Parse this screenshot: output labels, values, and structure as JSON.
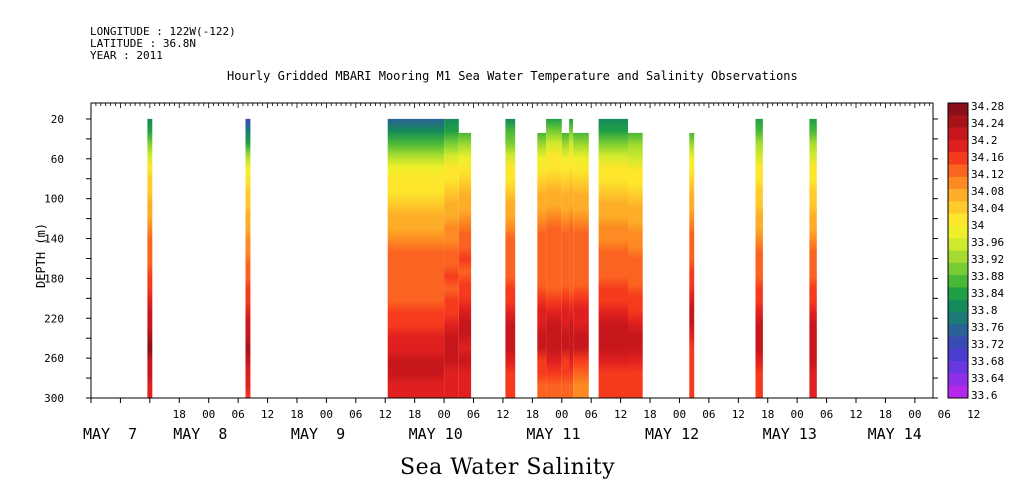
{
  "header": {
    "longitude": "LONGITUDE : 122W(-122)",
    "latitude": "LATITUDE : 36.8N",
    "year": "YEAR : 2011"
  },
  "chart_data": {
    "type": "heatmap",
    "title": "Hourly Gridded MBARI Mooring M1 Sea Water Temperature and Salinity Observations",
    "bottom_title": "Sea Water Salinity",
    "ylabel": "DEPTH (m)",
    "y_inverted": true,
    "ylim": [
      300,
      4
    ],
    "y_ticks": [
      "20",
      "60",
      "100",
      "140",
      "180",
      "220",
      "260",
      "300"
    ],
    "x_hour_labels": [
      {
        "h": 18,
        "label": "18"
      },
      {
        "h": 24,
        "label": "00"
      },
      {
        "h": 30,
        "label": "06"
      },
      {
        "h": 36,
        "label": "12"
      },
      {
        "h": 42,
        "label": "18"
      },
      {
        "h": 48,
        "label": "00"
      },
      {
        "h": 54,
        "label": "06"
      },
      {
        "h": 60,
        "label": "12"
      },
      {
        "h": 66,
        "label": "18"
      },
      {
        "h": 72,
        "label": "00"
      },
      {
        "h": 78,
        "label": "06"
      },
      {
        "h": 84,
        "label": "12"
      },
      {
        "h": 90,
        "label": "18"
      },
      {
        "h": 96,
        "label": "00"
      },
      {
        "h": 102,
        "label": "06"
      },
      {
        "h": 108,
        "label": "12"
      },
      {
        "h": 114,
        "label": "18"
      },
      {
        "h": 120,
        "label": "00"
      },
      {
        "h": 126,
        "label": "06"
      },
      {
        "h": 132,
        "label": "12"
      },
      {
        "h": 138,
        "label": "18"
      },
      {
        "h": 144,
        "label": "00"
      },
      {
        "h": 150,
        "label": "06"
      },
      {
        "h": 156,
        "label": "12"
      },
      {
        "h": 162,
        "label": "18"
      },
      {
        "h": 168,
        "label": "00"
      },
      {
        "h": 174,
        "label": "06"
      },
      {
        "h": 180,
        "label": "12"
      }
    ],
    "x_day_labels": [
      {
        "h": 0,
        "label": "MAY  7"
      },
      {
        "h": 18.4,
        "label": "MAY  8"
      },
      {
        "h": 42.4,
        "label": "MAY  9"
      },
      {
        "h": 66.4,
        "label": "MAY 10"
      },
      {
        "h": 90.4,
        "label": "MAY 11"
      },
      {
        "h": 114.6,
        "label": "MAY 12"
      },
      {
        "h": 138.6,
        "label": "MAY 13"
      },
      {
        "h": 160,
        "label": "MAY 14"
      }
    ],
    "hour_range": [
      0,
      171.7
    ],
    "colorbar": {
      "ticks": [
        "34.28",
        "34.24",
        "34.2",
        "34.16",
        "34.12",
        "34.08",
        "34.04",
        "34",
        "33.96",
        "33.92",
        "33.88",
        "33.84",
        "33.8",
        "33.76",
        "33.72",
        "33.68",
        "33.64",
        "33.6"
      ],
      "colors": [
        "#8a0f18",
        "#a8131a",
        "#c8171c",
        "#e0201f",
        "#f63a1d",
        "#fb6320",
        "#fd8a22",
        "#fdad27",
        "#fecb2b",
        "#fde62c",
        "#f0f02a",
        "#cfea2d",
        "#a6dc30",
        "#78cc33",
        "#48b838",
        "#1fa046",
        "#158a5a",
        "#1c7a78",
        "#2a6196",
        "#3a4ab4",
        "#4a3dd0",
        "#6a36e0",
        "#8f2fe8",
        "#b428ec"
      ]
    },
    "blocks": [
      {
        "h0": 11.5,
        "h1": 12.5,
        "top": 20,
        "column": [
          33.8,
          33.84,
          33.9,
          33.96,
          34.02,
          34.04,
          34.04,
          34.06,
          34.08,
          34.1,
          34.12,
          34.12,
          34.13,
          34.14,
          34.16,
          34.18,
          34.2,
          34.22,
          34.24,
          34.26,
          34.22,
          34.2,
          34.18,
          34.18
        ]
      },
      {
        "h0": 31.5,
        "h1": 32.5,
        "top": 20,
        "column": [
          33.74,
          33.78,
          33.84,
          33.92,
          33.98,
          34.02,
          34.04,
          34.05,
          34.06,
          34.08,
          34.1,
          34.11,
          34.12,
          34.12,
          34.14,
          34.16,
          34.18,
          34.2,
          34.22,
          34.24,
          34.2,
          34.18,
          34.18,
          34.16
        ]
      },
      {
        "h0": 60.5,
        "h1": 72.0,
        "top": 20,
        "column": [
          33.76,
          33.82,
          33.88,
          33.94,
          33.98,
          34.0,
          34.02,
          34.04,
          34.06,
          34.08,
          34.1,
          34.12,
          34.12,
          34.13,
          34.12,
          34.13,
          34.14,
          34.16,
          34.18,
          34.19,
          34.2,
          34.2,
          34.19,
          34.18
        ]
      },
      {
        "h0": 72.0,
        "h1": 75.0,
        "top": 20,
        "column": [
          33.8,
          33.84,
          33.9,
          33.96,
          34.0,
          34.02,
          34.04,
          34.06,
          34.08,
          34.1,
          34.11,
          34.12,
          34.13,
          34.14,
          34.13,
          34.14,
          34.16,
          34.18,
          34.2,
          34.21,
          34.2,
          34.18,
          34.18,
          34.18
        ]
      },
      {
        "h0": 75.0,
        "h1": 77.5,
        "top": 34,
        "column": [
          33.86,
          33.92,
          33.98,
          34.02,
          34.04,
          34.06,
          34.08,
          34.1,
          34.12,
          34.13,
          34.14,
          34.12,
          34.14,
          34.16,
          34.18,
          34.2,
          34.2,
          34.19,
          34.2,
          34.18,
          34.18,
          34.18
        ]
      },
      {
        "h0": 84.5,
        "h1": 86.5,
        "top": 20,
        "column": [
          33.82,
          33.86,
          33.9,
          33.96,
          34.0,
          34.02,
          34.04,
          34.06,
          34.08,
          34.1,
          34.12,
          34.12,
          34.13,
          34.13,
          34.14,
          34.16,
          34.18,
          34.2,
          34.22,
          34.2,
          34.18,
          34.16,
          34.16,
          34.16
        ]
      },
      {
        "h0": 91.0,
        "h1": 92.8,
        "top": 34,
        "column": [
          33.88,
          33.94,
          33.98,
          34.02,
          34.04,
          34.06,
          34.08,
          34.1,
          34.12,
          34.12,
          34.13,
          34.12,
          34.13,
          34.15,
          34.17,
          34.19,
          34.2,
          34.2,
          34.16,
          34.14,
          34.12,
          34.12
        ]
      },
      {
        "h0": 92.8,
        "h1": 96.0,
        "top": 20,
        "column": [
          33.84,
          33.9,
          33.96,
          34.0,
          34.02,
          34.04,
          34.06,
          34.08,
          34.1,
          34.12,
          34.12,
          34.13,
          34.12,
          34.12,
          34.13,
          34.15,
          34.18,
          34.2,
          34.22,
          34.21,
          34.18,
          34.14,
          34.12,
          34.12
        ]
      },
      {
        "h0": 96.0,
        "h1": 97.5,
        "top": 34,
        "column": [
          33.88,
          33.94,
          33.98,
          34.02,
          34.04,
          34.06,
          34.08,
          34.1,
          34.12,
          34.12,
          34.13,
          34.12,
          34.13,
          34.15,
          34.17,
          34.19,
          34.2,
          34.2,
          34.16,
          34.14,
          34.12,
          34.12
        ]
      },
      {
        "h0": 97.5,
        "h1": 98.3,
        "top": 20,
        "column": [
          33.84,
          33.9,
          33.96,
          34.0,
          34.02,
          34.04,
          34.06,
          34.08,
          34.1,
          34.12,
          34.12,
          34.13,
          34.12,
          34.12,
          34.13,
          34.15,
          34.18,
          34.2,
          34.22,
          34.21,
          34.18,
          34.14,
          34.12,
          34.12
        ]
      },
      {
        "h0": 98.3,
        "h1": 101.5,
        "top": 34,
        "column": [
          33.88,
          33.94,
          33.98,
          34.02,
          34.04,
          34.06,
          34.08,
          34.1,
          34.12,
          34.12,
          34.13,
          34.12,
          34.13,
          34.15,
          34.17,
          34.19,
          34.2,
          34.2,
          34.16,
          34.12,
          34.1,
          34.1
        ]
      },
      {
        "h0": 103.5,
        "h1": 109.5,
        "top": 20,
        "column": [
          33.8,
          33.84,
          33.9,
          33.96,
          34.0,
          34.02,
          34.04,
          34.06,
          34.08,
          34.1,
          34.11,
          34.12,
          34.12,
          34.13,
          34.14,
          34.16,
          34.18,
          34.2,
          34.22,
          34.21,
          34.18,
          34.16,
          34.16,
          34.16
        ]
      },
      {
        "h0": 109.5,
        "h1": 112.5,
        "top": 34,
        "column": [
          33.86,
          33.92,
          33.96,
          34.0,
          34.02,
          34.04,
          34.06,
          34.08,
          34.1,
          34.11,
          34.12,
          34.12,
          34.13,
          34.14,
          34.16,
          34.18,
          34.2,
          34.2,
          34.18,
          34.16,
          34.16,
          34.16
        ]
      },
      {
        "h0": 122.0,
        "h1": 123.0,
        "top": 34,
        "column": [
          33.86,
          33.92,
          33.98,
          34.02,
          34.04,
          34.06,
          34.08,
          34.1,
          34.12,
          34.12,
          34.13,
          34.14,
          34.16,
          34.18,
          34.2,
          34.2,
          34.18,
          34.16,
          34.16,
          34.16,
          34.16,
          34.16
        ]
      },
      {
        "h0": 135.5,
        "h1": 137.0,
        "top": 20,
        "column": [
          33.84,
          33.88,
          33.92,
          33.96,
          34.0,
          34.02,
          34.04,
          34.05,
          34.06,
          34.08,
          34.1,
          34.12,
          34.12,
          34.13,
          34.14,
          34.16,
          34.18,
          34.2,
          34.22,
          34.2,
          34.18,
          34.16,
          34.16,
          34.16
        ]
      },
      {
        "h0": 146.5,
        "h1": 148.0,
        "top": 20,
        "column": [
          33.84,
          33.88,
          33.92,
          33.96,
          34.0,
          34.02,
          34.04,
          34.05,
          34.06,
          34.08,
          34.1,
          34.12,
          34.12,
          34.13,
          34.14,
          34.16,
          34.18,
          34.2,
          34.22,
          34.22,
          34.2,
          34.18,
          34.18,
          34.18
        ]
      }
    ]
  }
}
